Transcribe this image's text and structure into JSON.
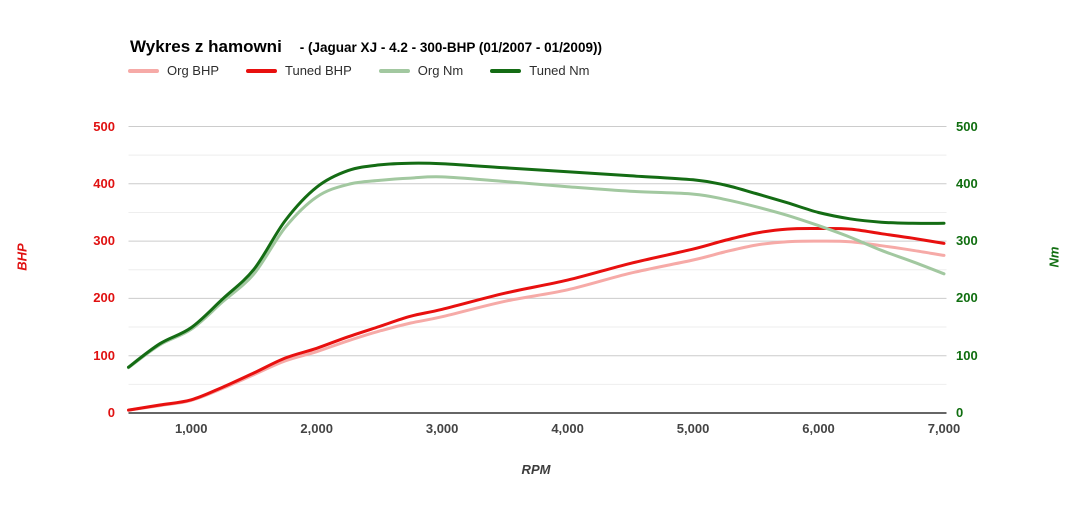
{
  "chart_data": {
    "type": "line",
    "title": "Wykres z hamowni",
    "subtitle": "- (Jaguar XJ - 4.2 - 300-BHP (01/2007 - 01/2009))",
    "xlabel": "RPM",
    "ylabel_left": "BHP",
    "ylabel_right": "Nm",
    "legend_position": "top",
    "grid": "horizontal-only",
    "x": [
      500,
      750,
      1000,
      1250,
      1500,
      1750,
      2000,
      2250,
      2500,
      2750,
      3000,
      3500,
      4000,
      4500,
      5000,
      5250,
      5500,
      5750,
      6000,
      6250,
      6500,
      6750,
      7000
    ],
    "series": [
      {
        "name": "Org BHP",
        "axis": "left",
        "color": "#f6aaa7",
        "values": [
          5,
          13,
          22,
          43,
          67,
          91,
          107,
          126,
          143,
          157,
          168,
          195,
          215,
          244,
          267,
          281,
          293,
          299,
          300,
          299,
          292,
          284,
          275
        ]
      },
      {
        "name": "Tuned BHP",
        "axis": "left",
        "color": "#e8100f",
        "values": [
          5,
          14,
          23,
          45,
          70,
          96,
          113,
          133,
          151,
          169,
          181,
          209,
          232,
          261,
          286,
          301,
          314,
          321,
          322,
          321,
          313,
          305,
          296
        ]
      },
      {
        "name": "Org Nm",
        "axis": "right",
        "color": "#a2c8a0",
        "values": [
          79,
          119,
          146,
          194,
          243,
          324,
          377,
          399,
          406,
          410,
          412,
          404,
          395,
          387,
          382,
          373,
          360,
          345,
          327,
          307,
          284,
          264,
          243
        ]
      },
      {
        "name": "Tuned Nm",
        "axis": "right",
        "color": "#146c14",
        "values": [
          80,
          121,
          149,
          199,
          251,
          336,
          394,
          423,
          433,
          436,
          435,
          428,
          421,
          414,
          407,
          398,
          383,
          367,
          350,
          339,
          333,
          331,
          331
        ]
      }
    ],
    "axes": {
      "left": {
        "color": "#e01111",
        "min": 0,
        "max": 500,
        "ticks": [
          0,
          100,
          200,
          300,
          400,
          500
        ]
      },
      "right": {
        "color": "#106e10",
        "min": 0,
        "max": 500,
        "ticks": [
          0,
          100,
          200,
          300,
          400,
          500
        ]
      },
      "x": {
        "color": "#444444",
        "title_color": "#3d3d3d",
        "min": 500,
        "max": 7000,
        "ticks": [
          {
            "value": 1000,
            "label": "1,000"
          },
          {
            "value": 2000,
            "label": "2,000"
          },
          {
            "value": 3000,
            "label": "3,000"
          },
          {
            "value": 4000,
            "label": "4,000"
          },
          {
            "value": 5000,
            "label": "5,000"
          },
          {
            "value": 6000,
            "label": "6,000"
          },
          {
            "value": 7000,
            "label": "7,000"
          }
        ]
      }
    },
    "gridlines": {
      "major_values": [
        100,
        200,
        300,
        400,
        500
      ],
      "minor_values": [
        50,
        150,
        250,
        350,
        450
      ],
      "major_color": "#cccccc",
      "minor_color": "#eeeeee",
      "baseline_color": "#333333"
    }
  }
}
